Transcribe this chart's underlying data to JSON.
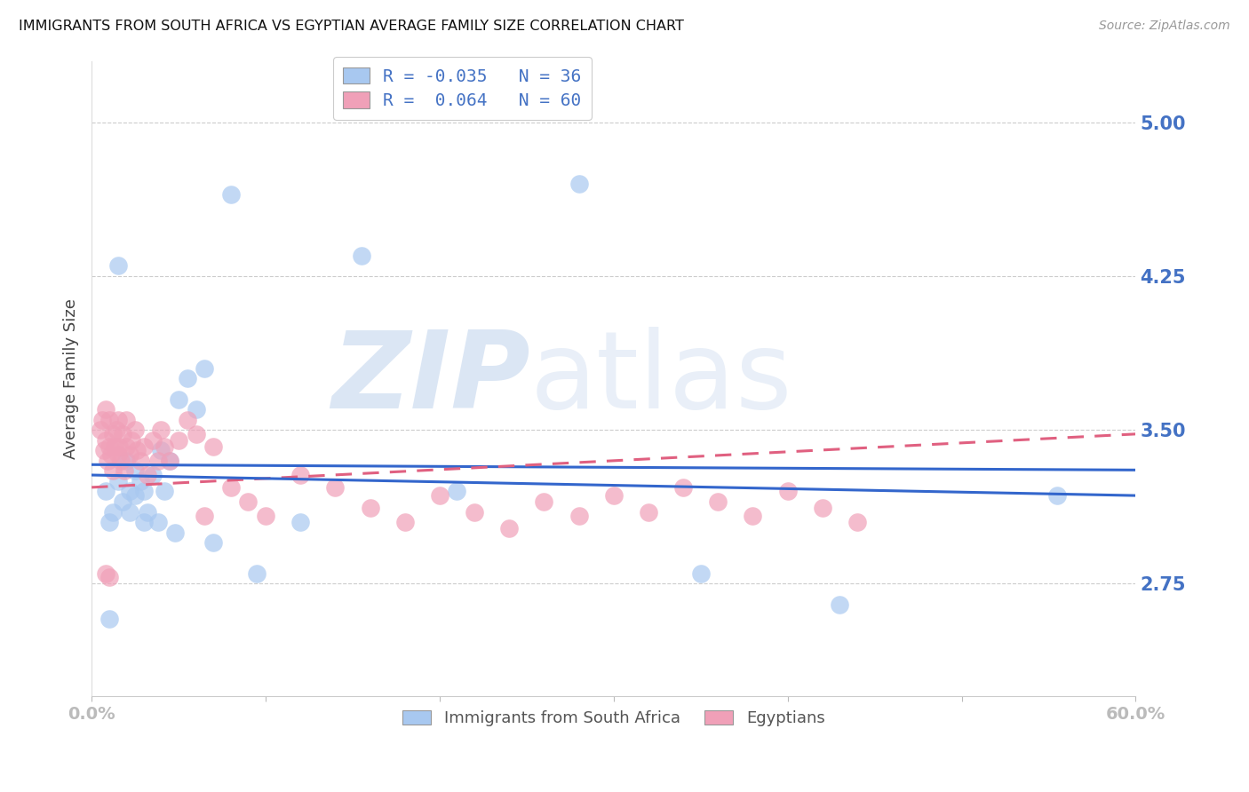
{
  "title": "IMMIGRANTS FROM SOUTH AFRICA VS EGYPTIAN AVERAGE FAMILY SIZE CORRELATION CHART",
  "source": "Source: ZipAtlas.com",
  "ylabel": "Average Family Size",
  "yticks": [
    2.75,
    3.5,
    4.25,
    5.0
  ],
  "xlim": [
    0.0,
    0.6
  ],
  "ylim": [
    2.2,
    5.3
  ],
  "bottom_legend": [
    "Immigrants from South Africa",
    "Egyptians"
  ],
  "blue_color": "#a8c8f0",
  "pink_color": "#f0a0b8",
  "blue_line_color": "#3366cc",
  "pink_line_color": "#e06080",
  "blue_R": -0.035,
  "blue_N": 36,
  "pink_R": 0.064,
  "pink_N": 60,
  "blue_scatter_x": [
    0.008,
    0.01,
    0.012,
    0.015,
    0.015,
    0.018,
    0.02,
    0.022,
    0.022,
    0.025,
    0.025,
    0.028,
    0.03,
    0.03,
    0.032,
    0.035,
    0.038,
    0.04,
    0.042,
    0.045,
    0.048,
    0.05,
    0.055,
    0.06,
    0.065,
    0.07,
    0.08,
    0.095,
    0.12,
    0.155,
    0.21,
    0.28,
    0.35,
    0.43,
    0.555,
    0.01
  ],
  "blue_scatter_y": [
    3.2,
    3.05,
    3.1,
    4.3,
    3.25,
    3.15,
    3.35,
    3.2,
    3.1,
    3.3,
    3.18,
    3.25,
    3.05,
    3.2,
    3.1,
    3.28,
    3.05,
    3.4,
    3.2,
    3.35,
    3.0,
    3.65,
    3.75,
    3.6,
    3.8,
    2.95,
    4.65,
    2.8,
    3.05,
    4.35,
    3.2,
    4.7,
    2.8,
    2.65,
    3.18,
    2.58
  ],
  "pink_scatter_x": [
    0.005,
    0.006,
    0.007,
    0.008,
    0.008,
    0.009,
    0.01,
    0.01,
    0.011,
    0.012,
    0.012,
    0.013,
    0.014,
    0.015,
    0.015,
    0.016,
    0.017,
    0.018,
    0.019,
    0.02,
    0.02,
    0.022,
    0.023,
    0.025,
    0.026,
    0.028,
    0.03,
    0.032,
    0.035,
    0.038,
    0.04,
    0.042,
    0.045,
    0.05,
    0.055,
    0.06,
    0.065,
    0.07,
    0.08,
    0.09,
    0.1,
    0.12,
    0.14,
    0.16,
    0.18,
    0.2,
    0.22,
    0.24,
    0.26,
    0.28,
    0.3,
    0.32,
    0.34,
    0.36,
    0.38,
    0.4,
    0.42,
    0.44,
    0.01,
    0.008
  ],
  "pink_scatter_y": [
    3.5,
    3.55,
    3.4,
    3.45,
    3.6,
    3.35,
    3.42,
    3.55,
    3.38,
    3.48,
    3.3,
    3.42,
    3.5,
    3.38,
    3.55,
    3.42,
    3.35,
    3.48,
    3.3,
    3.42,
    3.55,
    3.38,
    3.45,
    3.5,
    3.4,
    3.35,
    3.42,
    3.28,
    3.45,
    3.35,
    3.5,
    3.42,
    3.35,
    3.45,
    3.55,
    3.48,
    3.08,
    3.42,
    3.22,
    3.15,
    3.08,
    3.28,
    3.22,
    3.12,
    3.05,
    3.18,
    3.1,
    3.02,
    3.15,
    3.08,
    3.18,
    3.1,
    3.22,
    3.15,
    3.08,
    3.2,
    3.12,
    3.05,
    2.78,
    2.8
  ]
}
